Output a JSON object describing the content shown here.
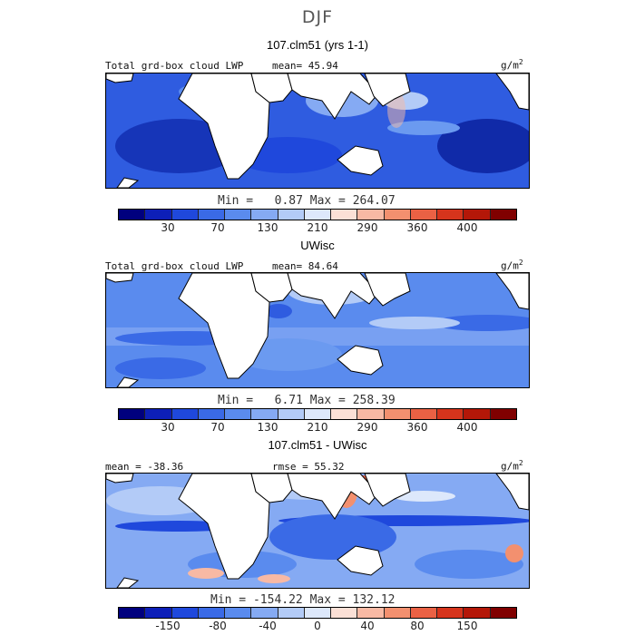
{
  "season": "DJF",
  "panels": [
    {
      "title": "107.clm51 (yrs 1-1)",
      "left_label": "Total grd-box cloud LWP",
      "mid_label": "mean=  45.94",
      "units": "g/m",
      "units_sup": "2",
      "minmax": "Min =   0.87 Max = 264.07",
      "ticks": [
        "30",
        "70",
        "130",
        "210",
        "290",
        "360",
        "400"
      ]
    },
    {
      "title": "UWisc",
      "left_label": "Total grd-box cloud LWP",
      "mid_label": "mean=  84.64",
      "units": "g/m",
      "units_sup": "2",
      "minmax": "Min =   6.71 Max = 258.39",
      "ticks": [
        "30",
        "70",
        "130",
        "210",
        "290",
        "360",
        "400"
      ]
    },
    {
      "title": "107.clm51 - UWisc",
      "left_label": "mean = -38.36",
      "mid_label": "rmse =  55.32",
      "units": "g/m",
      "units_sup": "2",
      "minmax": "Min = -154.22 Max = 132.12",
      "ticks": [
        "-150",
        "-80",
        "-40",
        "0",
        "40",
        "80",
        "150"
      ]
    }
  ],
  "colorbar_colors": [
    "#00007e",
    "#0d1fb8",
    "#1f48dc",
    "#3a6ae6",
    "#5a8bee",
    "#85aaf3",
    "#b3cbf7",
    "#dde8fb",
    "#fbe0d6",
    "#f8b9a4",
    "#f3906f",
    "#ea6144",
    "#d6341c",
    "#b41708",
    "#800000"
  ]
}
